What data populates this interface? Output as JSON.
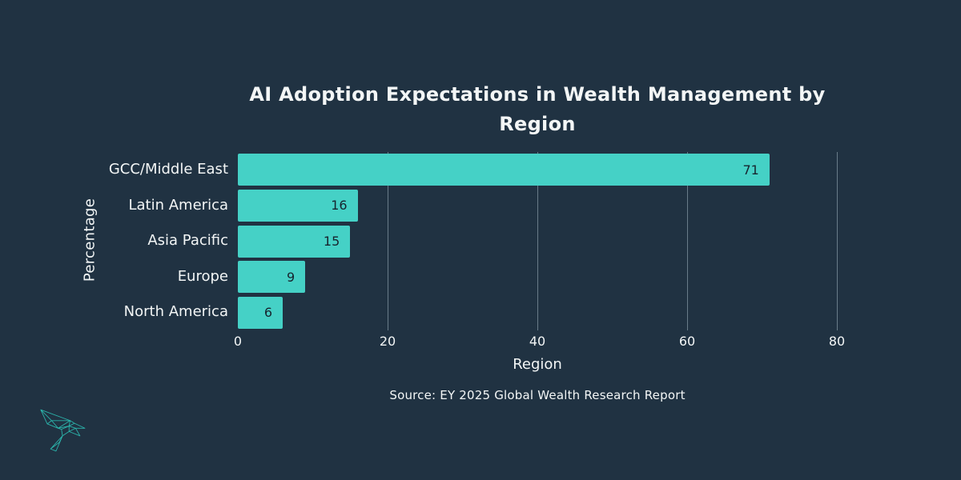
{
  "chart_data": {
    "type": "bar",
    "orientation": "horizontal",
    "title": "AI Adoption Expectations in Wealth Management by Region",
    "title_lines": [
      "AI Adoption Expectations in Wealth Management by",
      "Region"
    ],
    "categories": [
      "GCC/Middle East",
      "Latin America",
      "Asia Pacific",
      "Europe",
      "North America"
    ],
    "values": [
      71,
      16,
      15,
      9,
      6
    ],
    "xlabel": "Region",
    "ylabel": "Percentage",
    "xticks": [
      0,
      20,
      40,
      60,
      80
    ],
    "xlim": [
      0,
      86
    ],
    "grid": "vertical-gridlines-behind-bars",
    "legend": "none",
    "source": "Source: EY 2025 Global Wealth Research Report",
    "bar_color": "#45D1C6",
    "value_label_color": "#17242E",
    "background_color": "#203242",
    "text_color": "#F3F6F6",
    "gridline_color": "#8195A1"
  },
  "logo": {
    "name": "hummingbird-logo",
    "color": "#2BB4AB"
  }
}
